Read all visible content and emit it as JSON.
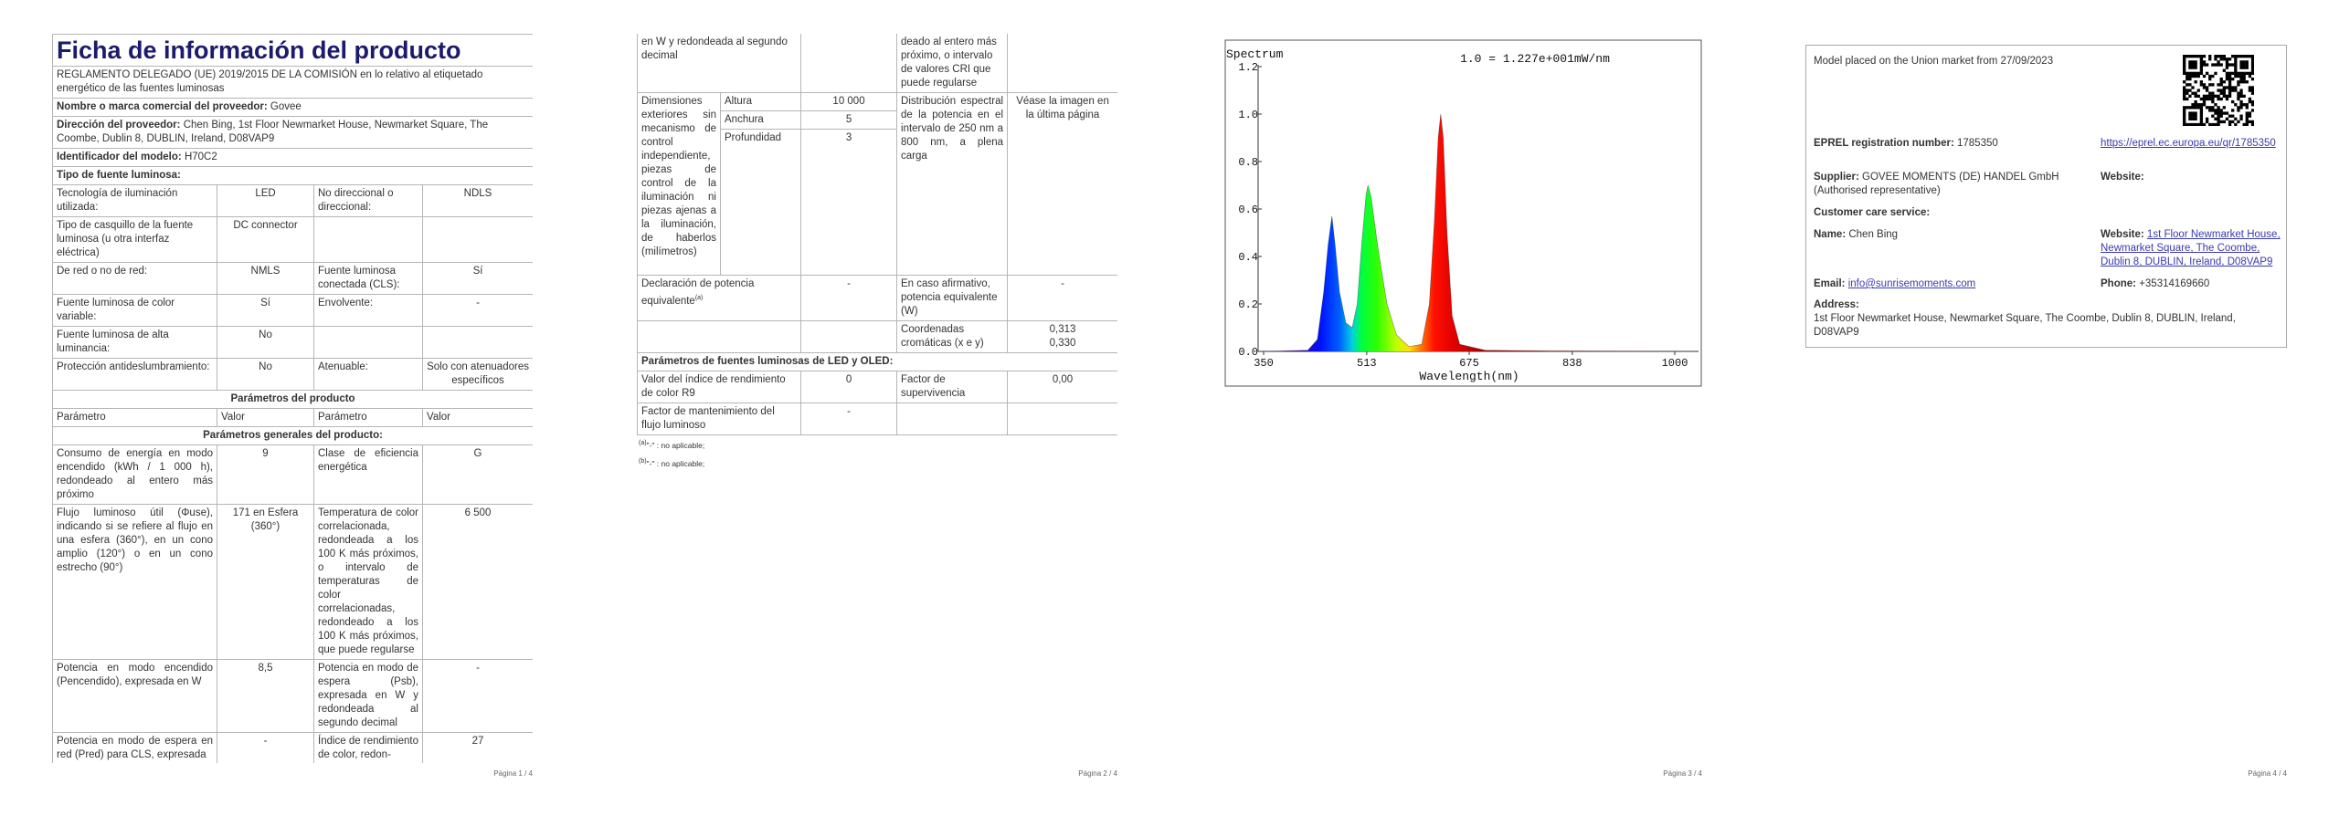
{
  "page1": {
    "title": "Ficha de información del producto",
    "regulation": "REGLAMENTO DELEGADO (UE) 2019/2015 DE LA COMISIÓN en lo relativo al etiquetado energético de las fuentes luminosas",
    "supplier_label": "Nombre o marca comercial del proveedor:",
    "supplier": "Govee",
    "address_label": "Dirección del proveedor:",
    "address": "Chen Bing, 1st Floor Newmarket House, Newmarket Square, The Coombe, Dublin 8, DUBLIN, Ireland, D08VAP9",
    "model_label": "Identificador del modelo:",
    "model": "H70C2",
    "type_heading": "Tipo de fuente luminosa:",
    "type_rows": [
      [
        "Tecnología de iluminación utilizada:",
        "LED",
        "No direccional o direccional:",
        "NDLS"
      ],
      [
        "Tipo de casquillo de la fuente luminosa (u otra interfaz eléctrica)",
        "DC connector"
      ],
      [
        "De red o no de red:",
        "NMLS",
        "Fuente luminosa conectada (CLS):",
        "Sí"
      ],
      [
        "Fuente luminosa de color variable:",
        "Sí",
        "Envolvente:",
        "-"
      ],
      [
        "Fuente luminosa de alta luminancia:",
        "No"
      ],
      [
        "Protección antideslumbramiento:",
        "No",
        "Atenuable:",
        "Solo con atenuadores específicos"
      ]
    ],
    "section_product": "Parámetros del producto",
    "header": [
      "Parámetro",
      "Valor",
      "Parámetro",
      "Valor"
    ],
    "section_general": "Parámetros generales del producto:",
    "general_rows": [
      [
        "Consumo de energía en modo encendido (kWh / 1 000 h), redondeado al entero más próximo",
        "9",
        "Clase de eficiencia energética",
        "G"
      ],
      [
        "Flujo luminoso útil (Φuse), indicando si se refiere al flujo en una esfera (360°), en un cono amplio (120°) o en un cono estrecho (90°)",
        "171 en Esfera (360°)",
        "Temperatura de color correlacionada, redondeada a los 100 K más próximos, o intervalo de temperaturas de color correlacionadas, redondeado a los 100 K más próximos, que puede regularse",
        "6 500"
      ],
      [
        "Potencia en modo encendido (Pencendido), expresada en W",
        "8,5",
        "Potencia en modo de espera (Psb), expresada en W y redondeada al segundo decimal",
        "-"
      ],
      [
        "Potencia en modo de espera en red (Pred) para CLS, expresada",
        "-",
        "Índice de rendimiento de color, redon-",
        "27"
      ]
    ],
    "page_number": "Página 1 / 4"
  },
  "page2": {
    "continued": [
      "en W y redondeada al segundo decimal",
      "deado al entero más próximo, o intervalo de valores CRI que puede regularse"
    ],
    "dimensions": {
      "label": "Dimensiones exteriores sin mecanismo de control independiente, piezas de control de la iluminación ni piezas ajenas a la iluminación, de haberlos (milímetros)",
      "height_label": "Altura",
      "height": "10 000",
      "width_label": "Anchura",
      "width": "5",
      "depth_label": "Profundidad",
      "depth": "3"
    },
    "spectral": {
      "label": "Distribución espectral de la potencia en el intervalo de 250 nm a 800 nm, a plena carga",
      "value": "Véase la imagen en la última página"
    },
    "equivalent": {
      "label": "Declaración de potencia equivalente",
      "note": "(a)",
      "value": "-",
      "label2": "En caso afirmativo, potencia equivalente (W)",
      "value2": "-"
    },
    "chromaticity": {
      "label": "Coordenadas cromáticas (x e y)",
      "x": "0,313",
      "y": "0,330"
    },
    "led_heading": "Parámetros de fuentes luminosas de LED y OLED:",
    "r9": {
      "label": "Valor del índice de rendimiento de color R9",
      "value": "0",
      "label2": "Factor de supervivencia",
      "value2": "0,00"
    },
    "maintenance": {
      "label": "Factor de mantenimiento del flujo luminoso",
      "value": "-"
    },
    "notes": [
      {
        "mark": "(a)",
        "text": "\"-\" : no aplicable;"
      },
      {
        "mark": "(b)",
        "text": "\"-\" : no aplicable;"
      }
    ],
    "page_number": "Página 2 / 4"
  },
  "page3": {
    "spectrum": {
      "title": "Spectrum",
      "subtitle": "1.0 = 1.227e+001mW/nm",
      "xlabel": "Wavelength(nm)",
      "xlim": [
        350,
        1000
      ],
      "ylim": [
        0,
        1.2
      ],
      "xticks": [
        350,
        513,
        675,
        838,
        1000
      ],
      "yticks": [
        {
          "value": 0,
          "label": "0.0"
        },
        {
          "value": 0.2,
          "label": "0.2"
        },
        {
          "value": 0.4,
          "label": "0.4"
        },
        {
          "value": 0.6,
          "label": "0.6"
        },
        {
          "value": 0.8,
          "label": "0.8"
        },
        {
          "value": 1,
          "label": "1.0"
        },
        {
          "value": 1.2,
          "label": "1.2"
        }
      ],
      "x": [
        350,
        420,
        435,
        445,
        452,
        458,
        463,
        470,
        480,
        490,
        498,
        505,
        512,
        515,
        520,
        530,
        545,
        560,
        580,
        600,
        612,
        620,
        626,
        630,
        634,
        640,
        648,
        660,
        700,
        800,
        1000
      ],
      "values": [
        0,
        0.005,
        0.05,
        0.25,
        0.45,
        0.57,
        0.45,
        0.25,
        0.12,
        0.1,
        0.2,
        0.45,
        0.66,
        0.7,
        0.65,
        0.45,
        0.2,
        0.07,
        0.02,
        0.03,
        0.2,
        0.55,
        0.9,
        1,
        0.9,
        0.5,
        0.15,
        0.03,
        0.005,
        0.002,
        0
      ]
    },
    "page_number": "Página 3 / 4"
  },
  "page4": {
    "market": "Model placed on the Union market from 27/09/2023",
    "eprel_label": "EPREL registration number:",
    "eprel": "1785350",
    "eprel_link": "https://eprel.ec.europa.eu/qr/1785350",
    "supplier_label": "Supplier:",
    "supplier": "GOVEE MOMENTS (DE) HANDEL GmbH (Authorised representative)",
    "website_label": "Website:",
    "care_heading": "Customer care service:",
    "name_label": "Name:",
    "name": "Chen Bing",
    "care_website_label": "Website:",
    "care_website": "1st Floor Newmarket House, Newmarket Square, The Coombe, Dublin 8, DUBLIN, Ireland, D08VAP9",
    "email_label": "Email:",
    "email": "info@sunrisemoments.com",
    "phone_label": "Phone:",
    "phone": "+35314169660",
    "address_label": "Address:",
    "address": "1st Floor Newmarket House, Newmarket Square, The Coombe, Dublin 8, DUBLIN, Ireland, D08VAP9",
    "page_number": "Página 4 / 4"
  }
}
